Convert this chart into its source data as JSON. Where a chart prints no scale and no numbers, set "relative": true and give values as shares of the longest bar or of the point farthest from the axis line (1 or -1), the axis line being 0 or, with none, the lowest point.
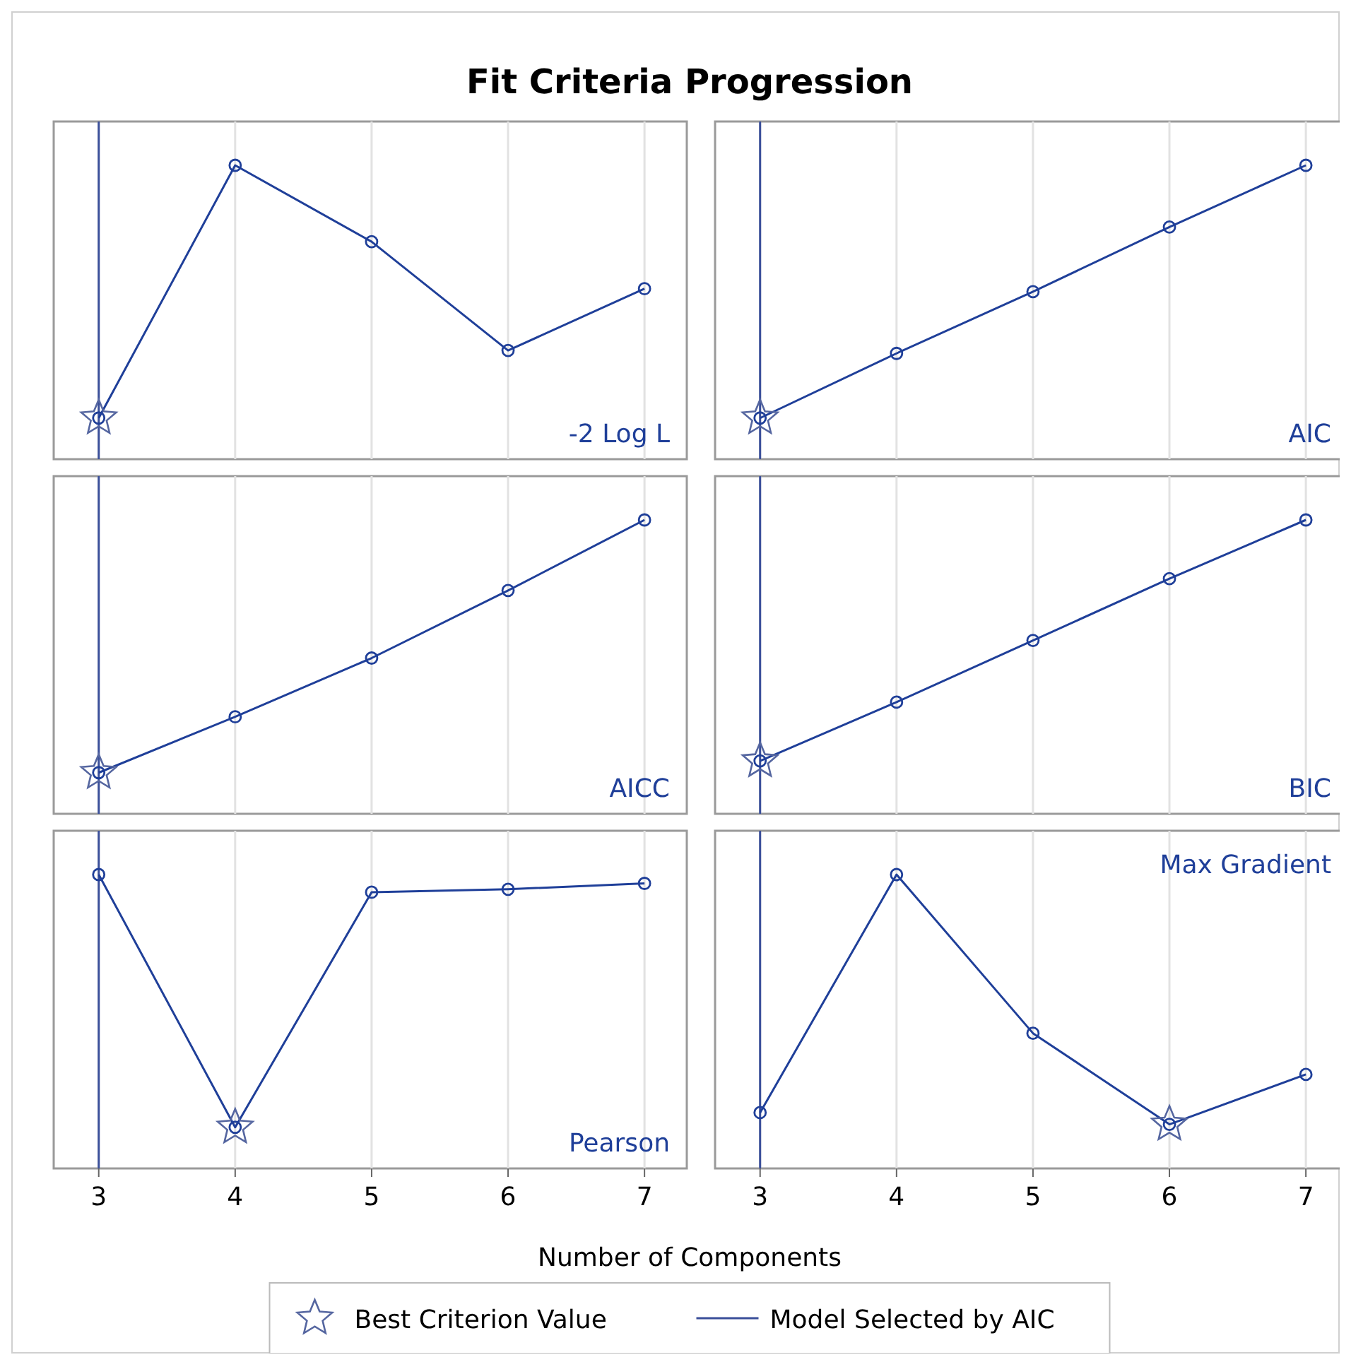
{
  "chart_data": [
    {
      "type": "line",
      "title": "Fit Criteria Progression",
      "relative": true,
      "x": [
        3,
        4,
        5,
        6,
        7
      ],
      "xlim": [
        2.67,
        7.31
      ],
      "xticks": [
        3,
        4,
        5,
        6,
        7
      ],
      "grid": "x",
      "tick_labels": false,
      "legend": "bottom",
      "marker": "circle",
      "line_style": "solid",
      "series": [
        {
          "name": "-2 Log L",
          "color": "#1f3f99",
          "values": [
            0.14,
            1,
            0.74,
            0.37,
            0.58
          ]
        },
        {
          "name": "Best Criterion Value",
          "type": "scatter",
          "marker": "star",
          "color": "#5566a0",
          "x": [
            3
          ],
          "values": [
            0.14
          ]
        }
      ],
      "ref_lines": [
        {
          "axis": "x",
          "value": 3,
          "label": "Model Selected by AIC",
          "color": "#3a4f9a"
        }
      ]
    },
    {
      "type": "line",
      "relative": true,
      "x": [
        3,
        4,
        5,
        6,
        7
      ],
      "xlim": [
        2.67,
        7.31
      ],
      "xticks": [
        3,
        4,
        5,
        6,
        7
      ],
      "grid": "x",
      "tick_labels": false,
      "marker": "circle",
      "line_style": "solid",
      "series": [
        {
          "name": "AIC",
          "color": "#1f3f99",
          "values": [
            0.14,
            0.36,
            0.57,
            0.79,
            1
          ]
        },
        {
          "type": "scatter",
          "marker": "star",
          "color": "#5566a0",
          "x": [
            3
          ],
          "values": [
            0.14
          ]
        }
      ],
      "ref_lines": [
        {
          "axis": "x",
          "value": 3,
          "color": "#3a4f9a"
        }
      ]
    },
    {
      "type": "line",
      "relative": true,
      "x": [
        3,
        4,
        5,
        6,
        7
      ],
      "xlim": [
        2.67,
        7.31
      ],
      "xticks": [
        3,
        4,
        5,
        6,
        7
      ],
      "grid": "x",
      "tick_labels": false,
      "marker": "circle",
      "line_style": "solid",
      "series": [
        {
          "name": "AICC",
          "color": "#1f3f99",
          "values": [
            0.14,
            0.33,
            0.53,
            0.76,
            1
          ]
        },
        {
          "type": "scatter",
          "marker": "star",
          "color": "#5566a0",
          "x": [
            3
          ],
          "values": [
            0.14
          ]
        }
      ],
      "ref_lines": [
        {
          "axis": "x",
          "value": 3,
          "color": "#3a4f9a"
        }
      ]
    },
    {
      "type": "line",
      "relative": true,
      "x": [
        3,
        4,
        5,
        6,
        7
      ],
      "xlim": [
        2.67,
        7.31
      ],
      "xticks": [
        3,
        4,
        5,
        6,
        7
      ],
      "grid": "x",
      "tick_labels": false,
      "marker": "circle",
      "line_style": "solid",
      "series": [
        {
          "name": "BIC",
          "color": "#1f3f99",
          "values": [
            0.18,
            0.38,
            0.59,
            0.8,
            1
          ]
        },
        {
          "type": "scatter",
          "marker": "star",
          "color": "#5566a0",
          "x": [
            3
          ],
          "values": [
            0.18
          ]
        }
      ],
      "ref_lines": [
        {
          "axis": "x",
          "value": 3,
          "color": "#3a4f9a"
        }
      ]
    },
    {
      "type": "line",
      "relative": true,
      "xlabel": "Number of Components",
      "x": [
        3,
        4,
        5,
        6,
        7
      ],
      "xlim": [
        2.67,
        7.31
      ],
      "xticks": [
        3,
        4,
        5,
        6,
        7
      ],
      "grid": "x",
      "tick_labels": "x",
      "marker": "circle",
      "line_style": "solid",
      "series": [
        {
          "name": "Pearson",
          "color": "#1f3f99",
          "values": [
            1,
            0.14,
            0.94,
            0.95,
            0.97
          ]
        },
        {
          "type": "scatter",
          "marker": "star",
          "color": "#5566a0",
          "x": [
            4
          ],
          "values": [
            0.14
          ]
        }
      ],
      "ref_lines": [
        {
          "axis": "x",
          "value": 3,
          "color": "#3a4f9a"
        }
      ]
    },
    {
      "type": "line",
      "relative": true,
      "x": [
        3,
        4,
        5,
        6,
        7
      ],
      "xlim": [
        2.67,
        7.31
      ],
      "xticks": [
        3,
        4,
        5,
        6,
        7
      ],
      "grid": "x",
      "tick_labels": "x",
      "marker": "circle",
      "line_style": "solid",
      "series": [
        {
          "name": "Max Gradient",
          "color": "#1f3f99",
          "values": [
            0.19,
            1,
            0.46,
            0.15,
            0.32
          ]
        },
        {
          "type": "scatter",
          "marker": "star",
          "color": "#5566a0",
          "x": [
            6
          ],
          "values": [
            0.15
          ]
        }
      ],
      "ref_lines": [
        {
          "axis": "x",
          "value": 3,
          "color": "#3a4f9a"
        }
      ]
    }
  ]
}
